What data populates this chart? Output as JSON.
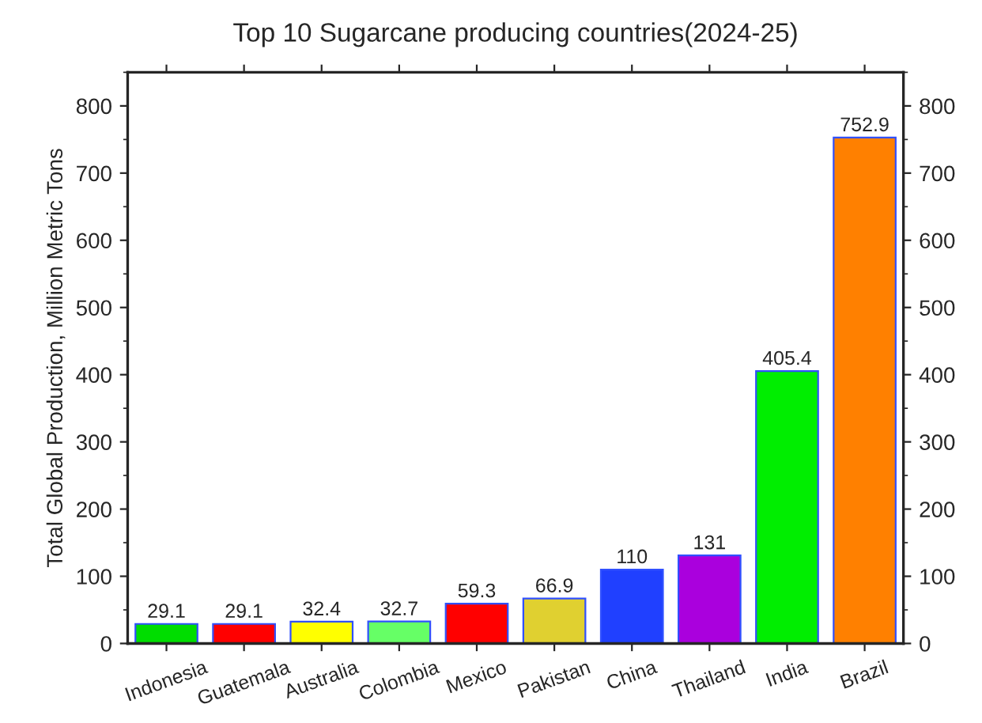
{
  "chart_data": {
    "type": "bar",
    "title": "Top 10 Sugarcane producing countries(2024-25)",
    "ylabel": "Total Global Production, Million Metric Tons",
    "categories": [
      "Indonesia",
      "Guatemala",
      "Australia",
      "Colombia",
      "Mexico",
      "Pakistan",
      "China",
      "Thailand",
      "India",
      "Brazil"
    ],
    "values": [
      29.1,
      29.1,
      32.4,
      32.7,
      59.3,
      66.9,
      110,
      131,
      405.4,
      752.9
    ],
    "colors": [
      "#00dd00",
      "#ff0000",
      "#ffff00",
      "#66ff66",
      "#ff0000",
      "#e0d030",
      "#2040ff",
      "#aa00dd",
      "#00ee00",
      "#ff8000"
    ],
    "ylim": [
      0,
      850
    ],
    "yticks": [
      0,
      100,
      200,
      300,
      400,
      500,
      600,
      700,
      800
    ],
    "y2lim": [
      0,
      850
    ],
    "y2ticks": [
      0,
      100,
      200,
      300,
      400,
      500,
      600,
      700,
      800
    ],
    "data_labels": true,
    "grid": false,
    "legend": false
  }
}
